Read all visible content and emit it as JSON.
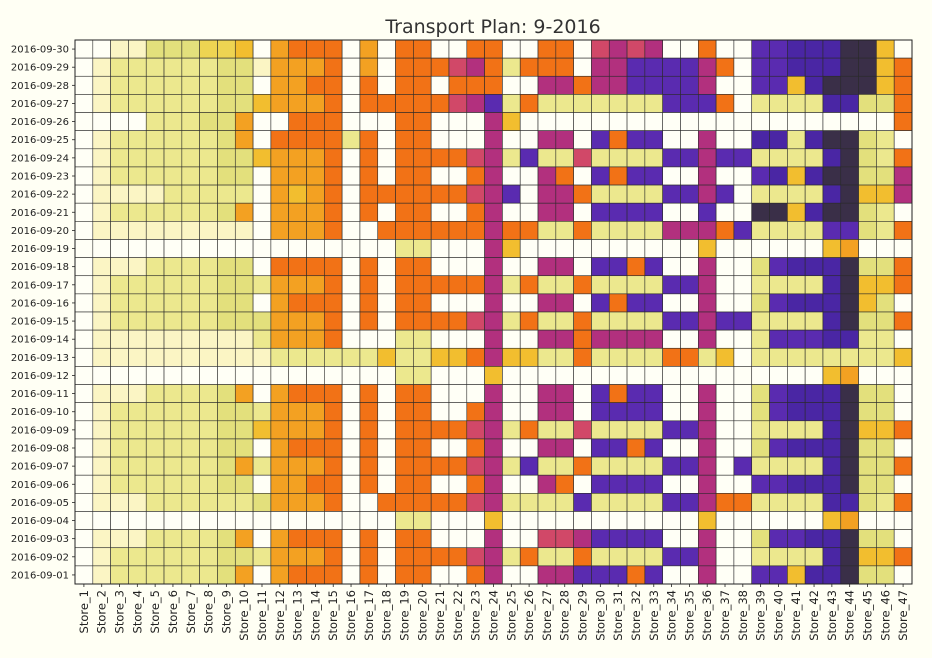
{
  "chart_data": {
    "type": "heatmap",
    "title": "Transport Plan: 9-2016",
    "xlabel": "",
    "ylabel": "",
    "legend": "none",
    "grid": true,
    "palette": [
      "#fffff6",
      "#fbf5c4",
      "#ece88e",
      "#e3e07c",
      "#eed452",
      "#f2be2f",
      "#f3a122",
      "#f27216",
      "#d14868",
      "#b2307e",
      "#5a2bb0",
      "#4a26a4",
      "#3a2f48"
    ],
    "x_categories": [
      "Store_1",
      "Store_2",
      "Store_3",
      "Store_4",
      "Store_5",
      "Store_6",
      "Store_7",
      "Store_8",
      "Store_9",
      "Store_10",
      "Store_11",
      "Store_12",
      "Store_13",
      "Store_14",
      "Store_15",
      "Store_16",
      "Store_17",
      "Store_18",
      "Store_19",
      "Store_20",
      "Store_21",
      "Store_22",
      "Store_23",
      "Store_24",
      "Store_25",
      "Store_26",
      "Store_27",
      "Store_28",
      "Store_29",
      "Store_30",
      "Store_31",
      "Store_32",
      "Store_33",
      "Store_34",
      "Store_35",
      "Store_36",
      "Store_37",
      "Store_38",
      "Store_39",
      "Store_40",
      "Store_41",
      "Store_42",
      "Store_43",
      "Store_44",
      "Store_45",
      "Store_46",
      "Store_47"
    ],
    "y_categories": [
      "2016-09-30",
      "2016-09-29",
      "2016-09-28",
      "2016-09-27",
      "2016-09-26",
      "2016-09-25",
      "2016-09-24",
      "2016-09-23",
      "2016-09-22",
      "2016-09-21",
      "2016-09-20",
      "2016-09-19",
      "2016-09-18",
      "2016-09-17",
      "2016-09-16",
      "2016-09-15",
      "2016-09-14",
      "2016-09-13",
      "2016-09-12",
      "2016-09-11",
      "2016-09-10",
      "2016-09-09",
      "2016-09-08",
      "2016-09-07",
      "2016-09-06",
      "2016-09-05",
      "2016-09-04",
      "2016-09-03",
      "2016-09-02",
      "2016-09-01"
    ],
    "values": [
      [
        0,
        0,
        1,
        1,
        3,
        3,
        3,
        4,
        4,
        5,
        0,
        6,
        7,
        7,
        7,
        0,
        6,
        0,
        7,
        7,
        0,
        0,
        7,
        7,
        0,
        0,
        7,
        7,
        0,
        8,
        9,
        8,
        9,
        0,
        0,
        7,
        0,
        0,
        10,
        10,
        11,
        11,
        11,
        12,
        12,
        5,
        0
      ],
      [
        0,
        1,
        2,
        2,
        2,
        2,
        2,
        2,
        3,
        3,
        1,
        6,
        6,
        6,
        7,
        0,
        6,
        0,
        7,
        7,
        7,
        8,
        9,
        7,
        2,
        7,
        7,
        7,
        0,
        9,
        9,
        10,
        10,
        10,
        10,
        9,
        7,
        0,
        10,
        10,
        11,
        11,
        11,
        12,
        12,
        5,
        7
      ],
      [
        0,
        1,
        2,
        2,
        2,
        2,
        2,
        2,
        3,
        3,
        0,
        6,
        6,
        7,
        7,
        0,
        7,
        0,
        7,
        7,
        0,
        7,
        7,
        7,
        0,
        0,
        9,
        9,
        7,
        9,
        9,
        10,
        10,
        10,
        10,
        9,
        0,
        0,
        10,
        10,
        5,
        11,
        12,
        12,
        12,
        5,
        7
      ],
      [
        0,
        1,
        2,
        2,
        2,
        2,
        2,
        2,
        3,
        3,
        5,
        6,
        6,
        6,
        7,
        0,
        7,
        7,
        7,
        7,
        7,
        8,
        9,
        10,
        2,
        7,
        2,
        2,
        2,
        2,
        2,
        2,
        2,
        10,
        10,
        10,
        7,
        0,
        2,
        2,
        2,
        2,
        11,
        11,
        3,
        3,
        7
      ],
      [
        0,
        0,
        0,
        0,
        2,
        2,
        2,
        3,
        3,
        6,
        0,
        0,
        7,
        7,
        7,
        0,
        0,
        0,
        7,
        7,
        0,
        0,
        0,
        9,
        5,
        0,
        0,
        0,
        0,
        0,
        0,
        0,
        0,
        0,
        0,
        0,
        0,
        0,
        0,
        0,
        0,
        0,
        0,
        0,
        0,
        0,
        7
      ],
      [
        0,
        1,
        2,
        2,
        2,
        2,
        2,
        2,
        3,
        6,
        0,
        7,
        7,
        7,
        7,
        2,
        7,
        0,
        7,
        7,
        0,
        0,
        0,
        9,
        0,
        0,
        9,
        9,
        0,
        10,
        7,
        10,
        10,
        0,
        0,
        9,
        0,
        0,
        11,
        11,
        2,
        11,
        12,
        12,
        3,
        2,
        0
      ],
      [
        0,
        1,
        2,
        2,
        2,
        2,
        2,
        2,
        3,
        3,
        5,
        6,
        6,
        6,
        7,
        0,
        7,
        0,
        7,
        7,
        7,
        7,
        8,
        9,
        2,
        10,
        2,
        2,
        8,
        2,
        2,
        2,
        2,
        10,
        10,
        9,
        10,
        10,
        2,
        2,
        2,
        2,
        11,
        12,
        3,
        2,
        7
      ],
      [
        0,
        1,
        2,
        2,
        2,
        2,
        2,
        2,
        3,
        3,
        0,
        6,
        6,
        6,
        7,
        0,
        7,
        0,
        7,
        7,
        0,
        0,
        7,
        9,
        0,
        0,
        9,
        7,
        0,
        10,
        7,
        10,
        10,
        0,
        0,
        9,
        0,
        0,
        10,
        11,
        5,
        11,
        12,
        12,
        3,
        3,
        9
      ],
      [
        0,
        1,
        1,
        1,
        1,
        2,
        2,
        2,
        2,
        2,
        0,
        6,
        5,
        6,
        7,
        0,
        7,
        7,
        7,
        7,
        7,
        7,
        8,
        9,
        10,
        0,
        9,
        9,
        7,
        2,
        2,
        2,
        2,
        10,
        10,
        9,
        10,
        0,
        2,
        2,
        2,
        2,
        11,
        12,
        5,
        5,
        9
      ],
      [
        0,
        1,
        2,
        2,
        2,
        2,
        2,
        2,
        3,
        6,
        0,
        6,
        6,
        6,
        7,
        0,
        7,
        0,
        7,
        7,
        0,
        0,
        7,
        9,
        0,
        0,
        9,
        9,
        0,
        10,
        10,
        10,
        10,
        0,
        0,
        10,
        0,
        0,
        12,
        12,
        5,
        11,
        12,
        12,
        3,
        2,
        0
      ],
      [
        0,
        1,
        1,
        1,
        1,
        1,
        1,
        1,
        1,
        1,
        0,
        6,
        6,
        6,
        7,
        0,
        0,
        7,
        7,
        7,
        7,
        7,
        7,
        9,
        7,
        7,
        2,
        2,
        7,
        2,
        2,
        2,
        2,
        9,
        9,
        9,
        7,
        10,
        2,
        2,
        2,
        2,
        10,
        10,
        3,
        2,
        7
      ],
      [
        0,
        0,
        0,
        0,
        0,
        0,
        0,
        0,
        0,
        0,
        0,
        0,
        0,
        0,
        0,
        0,
        0,
        0,
        2,
        2,
        0,
        0,
        0,
        9,
        5,
        0,
        0,
        0,
        0,
        0,
        0,
        0,
        0,
        0,
        0,
        5,
        0,
        0,
        0,
        0,
        0,
        0,
        5,
        6,
        0,
        0,
        0
      ],
      [
        0,
        1,
        1,
        1,
        2,
        2,
        2,
        2,
        3,
        3,
        0,
        7,
        7,
        7,
        7,
        0,
        7,
        0,
        7,
        7,
        0,
        0,
        0,
        9,
        0,
        0,
        9,
        9,
        0,
        10,
        10,
        7,
        10,
        0,
        0,
        9,
        0,
        0,
        3,
        10,
        11,
        11,
        11,
        12,
        3,
        3,
        7
      ],
      [
        0,
        1,
        2,
        2,
        2,
        2,
        2,
        2,
        3,
        3,
        2,
        6,
        6,
        6,
        7,
        0,
        7,
        0,
        7,
        7,
        7,
        7,
        7,
        9,
        2,
        7,
        2,
        2,
        7,
        2,
        2,
        2,
        2,
        10,
        10,
        9,
        0,
        0,
        2,
        2,
        2,
        2,
        11,
        12,
        5,
        5,
        7
      ],
      [
        0,
        1,
        2,
        2,
        2,
        2,
        2,
        2,
        3,
        3,
        0,
        6,
        7,
        7,
        7,
        0,
        7,
        0,
        7,
        7,
        0,
        0,
        0,
        9,
        0,
        0,
        9,
        9,
        0,
        10,
        7,
        10,
        10,
        0,
        0,
        9,
        0,
        0,
        3,
        10,
        11,
        11,
        11,
        12,
        5,
        3,
        0
      ],
      [
        0,
        1,
        2,
        2,
        2,
        2,
        2,
        2,
        3,
        3,
        3,
        6,
        6,
        6,
        7,
        0,
        7,
        0,
        7,
        7,
        7,
        7,
        8,
        9,
        2,
        7,
        2,
        2,
        7,
        2,
        2,
        2,
        2,
        10,
        10,
        9,
        10,
        10,
        2,
        2,
        2,
        2,
        11,
        12,
        3,
        3,
        7
      ],
      [
        0,
        1,
        1,
        1,
        1,
        1,
        1,
        1,
        1,
        1,
        2,
        6,
        6,
        6,
        7,
        0,
        0,
        0,
        2,
        2,
        0,
        0,
        0,
        9,
        0,
        0,
        9,
        9,
        7,
        9,
        9,
        9,
        9,
        0,
        0,
        9,
        0,
        0,
        2,
        10,
        10,
        10,
        11,
        11,
        2,
        2,
        0
      ],
      [
        0,
        1,
        1,
        1,
        1,
        1,
        1,
        1,
        1,
        1,
        1,
        2,
        2,
        2,
        2,
        2,
        2,
        5,
        2,
        2,
        5,
        5,
        7,
        9,
        5,
        5,
        2,
        2,
        7,
        2,
        2,
        2,
        2,
        7,
        7,
        2,
        5,
        0,
        2,
        2,
        2,
        2,
        2,
        2,
        2,
        2,
        5
      ],
      [
        0,
        0,
        0,
        0,
        0,
        0,
        0,
        0,
        0,
        0,
        0,
        0,
        0,
        0,
        0,
        0,
        0,
        0,
        2,
        2,
        0,
        0,
        0,
        5,
        0,
        0,
        0,
        0,
        0,
        0,
        0,
        0,
        0,
        0,
        0,
        0,
        0,
        0,
        0,
        0,
        0,
        0,
        5,
        6,
        0,
        0,
        0
      ],
      [
        0,
        1,
        1,
        1,
        2,
        2,
        2,
        2,
        3,
        6,
        0,
        6,
        7,
        7,
        7,
        0,
        7,
        0,
        7,
        7,
        0,
        0,
        0,
        9,
        0,
        0,
        9,
        9,
        0,
        10,
        7,
        10,
        10,
        0,
        0,
        9,
        0,
        0,
        3,
        10,
        11,
        11,
        11,
        12,
        3,
        3,
        0
      ],
      [
        0,
        1,
        2,
        2,
        2,
        2,
        2,
        2,
        3,
        3,
        2,
        6,
        6,
        6,
        7,
        0,
        7,
        0,
        7,
        7,
        0,
        0,
        7,
        9,
        0,
        0,
        9,
        9,
        0,
        10,
        10,
        10,
        10,
        0,
        0,
        9,
        0,
        0,
        3,
        10,
        11,
        11,
        11,
        12,
        3,
        3,
        0
      ],
      [
        0,
        1,
        2,
        2,
        2,
        2,
        2,
        2,
        3,
        3,
        5,
        6,
        6,
        6,
        7,
        0,
        7,
        0,
        7,
        7,
        7,
        7,
        8,
        9,
        2,
        7,
        2,
        2,
        8,
        2,
        2,
        2,
        2,
        10,
        10,
        9,
        0,
        0,
        2,
        2,
        2,
        2,
        11,
        12,
        5,
        5,
        7
      ],
      [
        0,
        1,
        2,
        2,
        2,
        2,
        2,
        2,
        3,
        3,
        0,
        6,
        7,
        7,
        7,
        0,
        7,
        0,
        7,
        7,
        0,
        0,
        7,
        9,
        0,
        0,
        9,
        9,
        0,
        10,
        10,
        7,
        10,
        0,
        0,
        9,
        0,
        0,
        3,
        10,
        11,
        11,
        11,
        12,
        3,
        3,
        0
      ],
      [
        0,
        1,
        2,
        2,
        2,
        2,
        2,
        2,
        3,
        6,
        2,
        6,
        6,
        6,
        7,
        0,
        7,
        0,
        7,
        7,
        7,
        7,
        8,
        9,
        2,
        10,
        2,
        2,
        7,
        2,
        2,
        2,
        2,
        10,
        10,
        9,
        0,
        10,
        2,
        2,
        2,
        2,
        11,
        12,
        3,
        3,
        7
      ],
      [
        0,
        1,
        2,
        2,
        2,
        2,
        2,
        2,
        3,
        3,
        0,
        6,
        6,
        7,
        7,
        0,
        7,
        0,
        7,
        7,
        0,
        0,
        7,
        9,
        0,
        0,
        9,
        7,
        0,
        10,
        10,
        10,
        10,
        0,
        0,
        9,
        0,
        0,
        10,
        10,
        11,
        11,
        11,
        12,
        3,
        3,
        0
      ],
      [
        0,
        1,
        1,
        1,
        2,
        2,
        2,
        2,
        2,
        2,
        3,
        6,
        6,
        6,
        7,
        0,
        0,
        7,
        7,
        7,
        7,
        7,
        8,
        9,
        2,
        2,
        2,
        2,
        10,
        2,
        2,
        2,
        2,
        10,
        10,
        9,
        7,
        7,
        2,
        2,
        2,
        2,
        11,
        11,
        3,
        2,
        7
      ],
      [
        0,
        0,
        0,
        0,
        0,
        0,
        0,
        0,
        0,
        0,
        0,
        0,
        0,
        0,
        0,
        0,
        0,
        0,
        2,
        2,
        0,
        0,
        0,
        5,
        0,
        0,
        0,
        0,
        0,
        0,
        0,
        0,
        0,
        0,
        0,
        5,
        0,
        0,
        0,
        0,
        0,
        0,
        5,
        6,
        0,
        0,
        0
      ],
      [
        0,
        1,
        1,
        1,
        2,
        2,
        2,
        2,
        3,
        6,
        0,
        6,
        7,
        7,
        7,
        0,
        7,
        0,
        7,
        7,
        0,
        0,
        0,
        9,
        0,
        0,
        8,
        8,
        9,
        10,
        10,
        10,
        10,
        0,
        0,
        9,
        0,
        0,
        3,
        10,
        10,
        11,
        11,
        12,
        3,
        3,
        0
      ],
      [
        0,
        1,
        2,
        2,
        2,
        2,
        2,
        2,
        3,
        3,
        2,
        6,
        6,
        6,
        7,
        0,
        7,
        0,
        7,
        7,
        7,
        7,
        8,
        9,
        2,
        7,
        2,
        2,
        7,
        2,
        2,
        2,
        2,
        10,
        10,
        9,
        0,
        0,
        2,
        2,
        2,
        2,
        11,
        12,
        5,
        5,
        7
      ],
      [
        0,
        1,
        2,
        2,
        2,
        2,
        2,
        2,
        3,
        6,
        0,
        6,
        7,
        7,
        7,
        0,
        7,
        0,
        7,
        7,
        0,
        0,
        7,
        9,
        0,
        0,
        9,
        9,
        10,
        10,
        10,
        7,
        10,
        0,
        0,
        9,
        0,
        0,
        10,
        10,
        5,
        11,
        11,
        12,
        3,
        3,
        0
      ]
    ]
  }
}
